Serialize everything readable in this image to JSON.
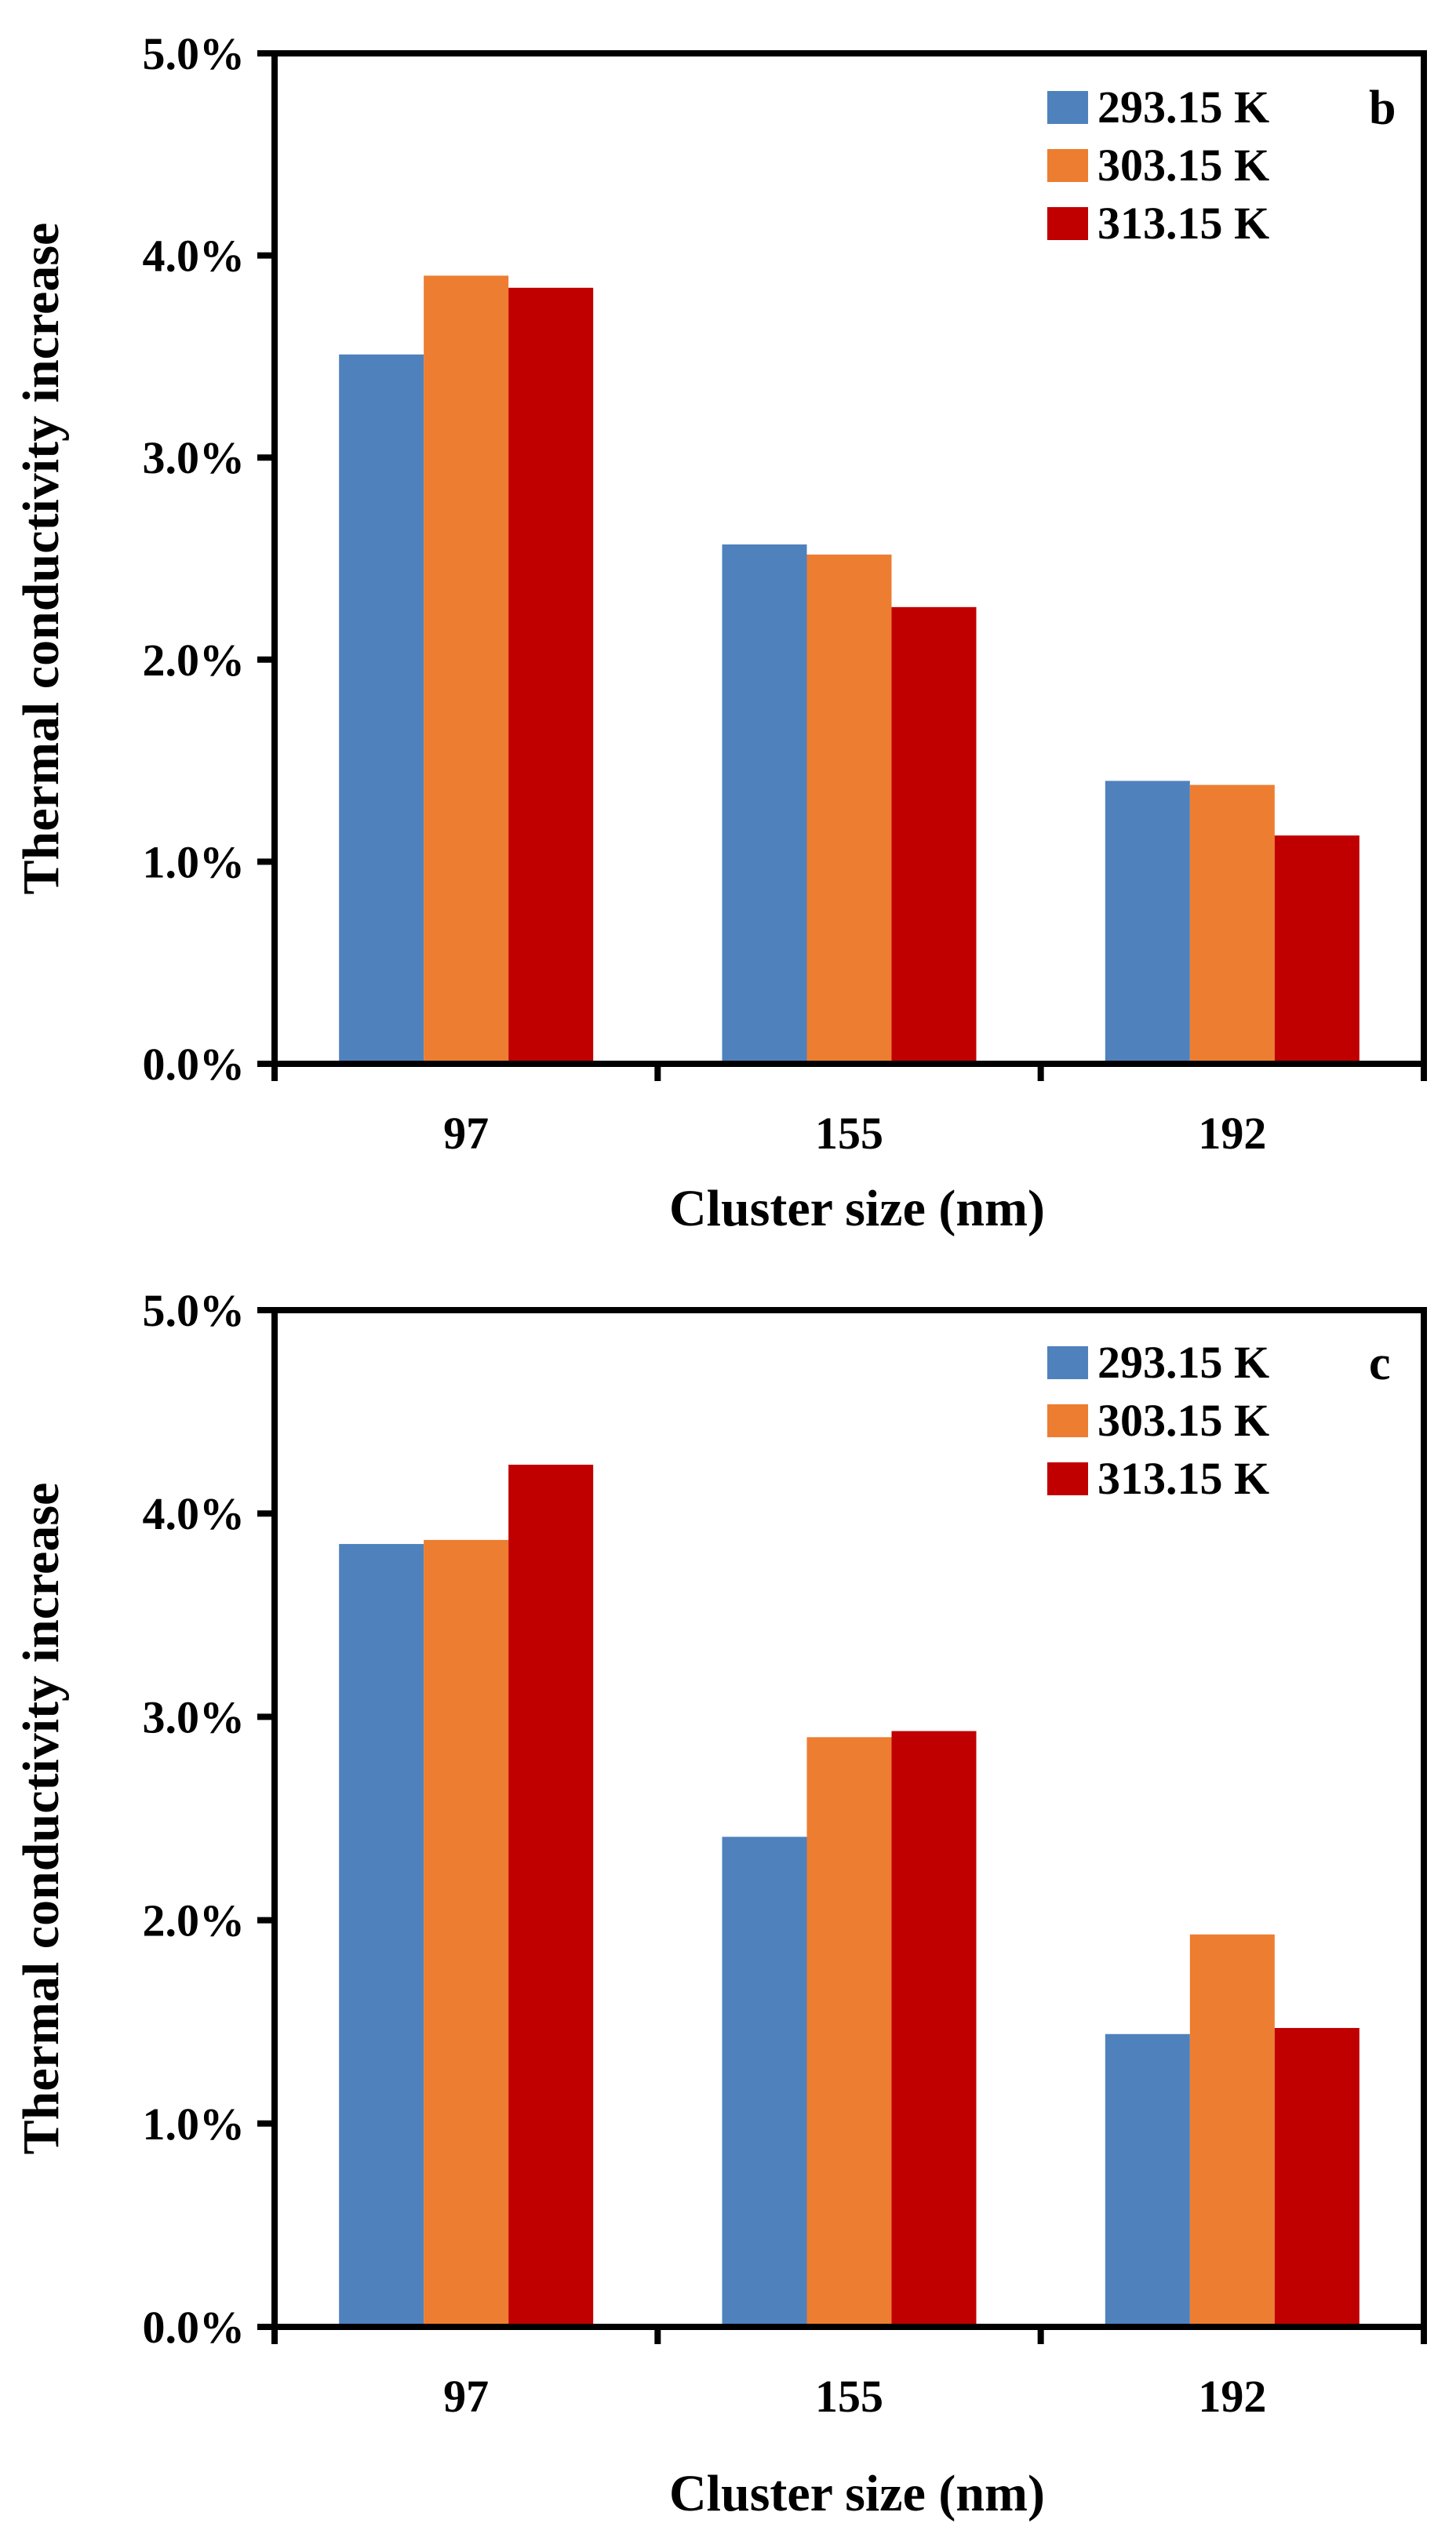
{
  "chart_data": [
    {
      "type": "bar",
      "panel_label": "b",
      "title": "",
      "xlabel": "Cluster size (nm)",
      "ylabel": "Thermal conductivity increase",
      "categories": [
        "97",
        "155",
        "192"
      ],
      "yticks": [
        "0.0%",
        "1.0%",
        "2.0%",
        "3.0%",
        "4.0%",
        "5.0%"
      ],
      "ylim": [
        0,
        5
      ],
      "grid": false,
      "legend_position": "top-right",
      "series": [
        {
          "name": "293.15 K",
          "color": "#4F81BD",
          "values": [
            3.51,
            2.57,
            1.4
          ]
        },
        {
          "name": "303.15 K",
          "color": "#ED7D31",
          "values": [
            3.9,
            2.52,
            1.38
          ]
        },
        {
          "name": "313.15 K",
          "color": "#C00000",
          "values": [
            3.84,
            2.26,
            1.13
          ]
        }
      ]
    },
    {
      "type": "bar",
      "panel_label": "c",
      "title": "",
      "xlabel": "Cluster size (nm)",
      "ylabel": "Thermal conductivity increase",
      "categories": [
        "97",
        "155",
        "192"
      ],
      "yticks": [
        "0.0%",
        "1.0%",
        "2.0%",
        "3.0%",
        "4.0%",
        "5.0%"
      ],
      "ylim": [
        0,
        5
      ],
      "grid": false,
      "legend_position": "top-right",
      "series": [
        {
          "name": "293.15 K",
          "color": "#4F81BD",
          "values": [
            3.85,
            2.41,
            1.44
          ]
        },
        {
          "name": "303.15 K",
          "color": "#ED7D31",
          "values": [
            3.87,
            2.9,
            1.93
          ]
        },
        {
          "name": "313.15 K",
          "color": "#C00000",
          "values": [
            4.24,
            2.93,
            1.47
          ]
        }
      ]
    }
  ]
}
